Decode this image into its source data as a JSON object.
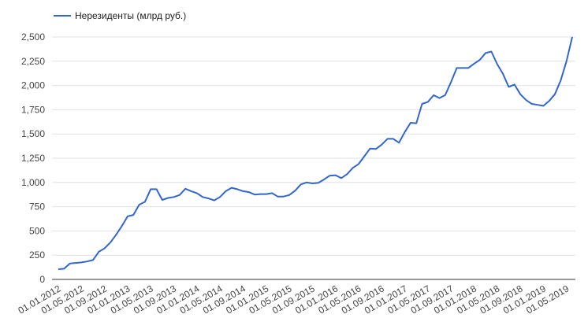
{
  "chart_data": {
    "type": "line",
    "title": "",
    "xlabel": "",
    "ylabel": "",
    "ylim": [
      0,
      2500
    ],
    "grid": "horizontal",
    "legend_position": "top-left",
    "y_ticks": [
      "0",
      "250",
      "500",
      "750",
      "1,000",
      "1,250",
      "1,500",
      "1,750",
      "2,000",
      "2,250",
      "2,500"
    ],
    "x_tick_labels": [
      "01.01.2012",
      "01.05.2012",
      "01.09.2012",
      "01.01.2013",
      "01.05.2013",
      "01.09.2013",
      "01.01.2014",
      "01.05.2014",
      "01.09.2014",
      "01.01.2015",
      "01.05.2015",
      "01.09.2015",
      "01.01.2016",
      "01.05.2016",
      "01.09.2016",
      "01.01.2017",
      "01.05.2017",
      "01.09.2017",
      "01.01.2018",
      "01.05.2018",
      "01.09.2018",
      "01.01.2019",
      "01.05.2019"
    ],
    "series": [
      {
        "name": "Нерезиденты (млрд руб.)",
        "color": "#3366cc",
        "values": [
          105,
          110,
          165,
          170,
          175,
          185,
          200,
          285,
          320,
          380,
          460,
          550,
          650,
          665,
          770,
          800,
          930,
          930,
          820,
          840,
          850,
          870,
          935,
          910,
          890,
          850,
          835,
          815,
          850,
          910,
          945,
          930,
          910,
          900,
          875,
          880,
          880,
          890,
          855,
          855,
          870,
          915,
          980,
          1000,
          990,
          995,
          1030,
          1070,
          1075,
          1045,
          1085,
          1150,
          1190,
          1270,
          1350,
          1345,
          1390,
          1450,
          1450,
          1410,
          1520,
          1615,
          1610,
          1810,
          1830,
          1900,
          1870,
          1900,
          2035,
          2180,
          2180,
          2180,
          2225,
          2265,
          2335,
          2350,
          2220,
          2120,
          1985,
          2010,
          1910,
          1850,
          1810,
          1800,
          1790,
          1840,
          1910,
          2050,
          2250,
          2500
        ]
      }
    ]
  }
}
